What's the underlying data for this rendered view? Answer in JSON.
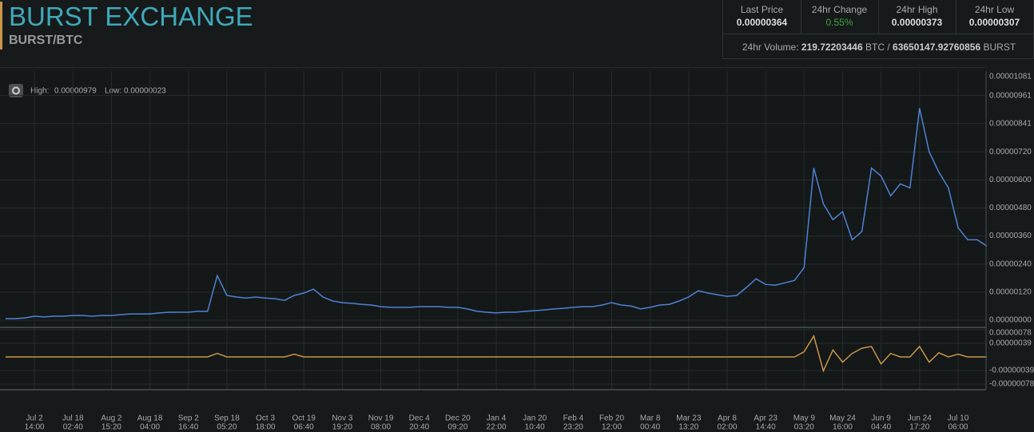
{
  "header": {
    "title": "BURST EXCHANGE",
    "pair": "BURST/BTC"
  },
  "stats": [
    {
      "label": "Last Price",
      "value": "0.00000364"
    },
    {
      "label": "24hr Change",
      "value": "0.55%"
    },
    {
      "label": "24hr High",
      "value": "0.00000373"
    },
    {
      "label": "24hr Low",
      "value": "0.00000307"
    }
  ],
  "volume": {
    "label": "24hr Volume:",
    "btc": "219.72203446",
    "btc_unit": "BTC",
    "separator": "/",
    "burst": "63650147.92760856",
    "burst_unit": "BURST"
  },
  "chart_info": {
    "high_label": "High:",
    "high": "0.00000979",
    "low_label": "Low:",
    "low": "0.00000023"
  },
  "chart_data": [
    {
      "type": "line",
      "categories": [
        null,
        null,
        null,
        "Jul 2",
        null,
        null,
        null,
        "Jul 18",
        null,
        null,
        null,
        "Aug 2",
        null,
        null,
        null,
        "Aug 18",
        null,
        null,
        null,
        "Sep 2",
        null,
        null,
        null,
        "Sep 18",
        null,
        null,
        null,
        "Oct 3",
        null,
        null,
        null,
        "Oct 19",
        null,
        null,
        null,
        "Nov 3",
        null,
        null,
        null,
        "Nov 19",
        null,
        null,
        null,
        "Dec 4",
        null,
        null,
        null,
        "Dec 20",
        null,
        null,
        null,
        "Jan 4",
        null,
        null,
        null,
        "Jan 20",
        null,
        null,
        null,
        "Feb 4",
        null,
        null,
        null,
        "Feb 20",
        null,
        null,
        null,
        "Mar 8",
        null,
        null,
        null,
        "Mar 23",
        null,
        null,
        null,
        "Apr 8",
        null,
        null,
        null,
        "Apr 23",
        null,
        null,
        null,
        "May 9",
        null,
        null,
        null,
        "May 24",
        null,
        null,
        null,
        "Jun 9",
        null,
        null,
        null,
        "Jun 24",
        null,
        null,
        null,
        "Jul 10",
        null,
        null,
        null
      ],
      "category_times": [
        null,
        null,
        null,
        "14:00",
        null,
        null,
        null,
        "02:40",
        null,
        null,
        null,
        "15:20",
        null,
        null,
        null,
        "04:00",
        null,
        null,
        null,
        "16:40",
        null,
        null,
        null,
        "05:20",
        null,
        null,
        null,
        "18:00",
        null,
        null,
        null,
        "06:40",
        null,
        null,
        null,
        "19:20",
        null,
        null,
        null,
        "08:00",
        null,
        null,
        null,
        "20:40",
        null,
        null,
        null,
        "09:20",
        null,
        null,
        null,
        "22:00",
        null,
        null,
        null,
        "10:40",
        null,
        null,
        null,
        "23:20",
        null,
        null,
        null,
        "12:00",
        null,
        null,
        null,
        "00:40",
        null,
        null,
        null,
        "13:20",
        null,
        null,
        null,
        "02:00",
        null,
        null,
        null,
        "14:40",
        null,
        null,
        null,
        "03:20",
        null,
        null,
        null,
        "16:00",
        null,
        null,
        null,
        "04:40",
        null,
        null,
        null,
        "17:20",
        null,
        null,
        null,
        "06:00",
        null,
        null,
        null
      ],
      "color": "#4f82d6",
      "values": [
        7e-08,
        7e-08,
        1e-07,
        1.7e-07,
        1.4e-07,
        1.7e-07,
        1.7e-07,
        2e-07,
        2e-07,
        1.7e-07,
        2e-07,
        2e-07,
        2.4e-07,
        2.7e-07,
        2.7e-07,
        2.7e-07,
        3.1e-07,
        3.4e-07,
        3.4e-07,
        3.4e-07,
        3.8e-07,
        3.8e-07,
        1.91e-06,
        1.06e-06,
        9.9e-07,
        9.5e-07,
        9.9e-07,
        9.5e-07,
        9.2e-07,
        8.5e-07,
        1.06e-06,
        1.16e-06,
        1.33e-06,
        9.9e-07,
        8.2e-07,
        7.5e-07,
        7.2e-07,
        6.8e-07,
        6.5e-07,
        5.8e-07,
        5.5e-07,
        5.5e-07,
        5.5e-07,
        5.8e-07,
        5.8e-07,
        5.8e-07,
        5.5e-07,
        5.5e-07,
        4.8e-07,
        3.8e-07,
        3.4e-07,
        3.1e-07,
        3.4e-07,
        3.4e-07,
        3.8e-07,
        4.1e-07,
        4.4e-07,
        4.8e-07,
        5.1e-07,
        5.5e-07,
        5.8e-07,
        5.8e-07,
        6.5e-07,
        7.5e-07,
        6.5e-07,
        6.1e-07,
        4.8e-07,
        5.5e-07,
        6.5e-07,
        6.8e-07,
        8.2e-07,
        9.9e-07,
        1.26e-06,
        1.16e-06,
        1.09e-06,
        1.02e-06,
        1.06e-06,
        1.4e-06,
        1.77e-06,
        1.53e-06,
        1.5e-06,
        1.6e-06,
        1.7e-06,
        2.25e-06,
        6.51e-06,
        4.98e-06,
        4.3e-06,
        4.64e-06,
        3.44e-06,
        3.79e-06,
        6.51e-06,
        6.17e-06,
        5.32e-06,
        5.83e-06,
        5.66e-06,
        9.07e-06,
        7.2e-06,
        6.34e-06,
        5.66e-06,
        3.96e-06,
        3.44e-06,
        3.44e-06,
        3.17e-06
      ],
      "ylim": [
        0,
        1.081e-05
      ],
      "yticks": [
        {
          "value": 0,
          "label": "0.00000000"
        },
        {
          "value": 1.2e-06,
          "label": "0.00000120"
        },
        {
          "value": 2.4e-06,
          "label": "0.00000240"
        },
        {
          "value": 3.6e-06,
          "label": "0.00000360"
        },
        {
          "value": 4.8e-06,
          "label": "0.00000480"
        },
        {
          "value": 6e-06,
          "label": "0.00000600"
        },
        {
          "value": 7.2e-06,
          "label": "0.00000720"
        },
        {
          "value": 8.41e-06,
          "label": "0.00000841"
        },
        {
          "value": 9.61e-06,
          "label": "0.00000961"
        },
        {
          "value": 1.081e-05,
          "label": "0.00001081"
        }
      ],
      "grid": true
    },
    {
      "type": "line",
      "color": "#c8964a",
      "values": [
        0,
        0,
        0,
        0,
        0,
        0,
        0,
        0,
        0,
        0,
        0,
        0,
        0,
        0,
        0,
        0,
        0,
        0,
        0,
        0,
        0,
        0,
        1e-07,
        0,
        0,
        0,
        0,
        0,
        0,
        0,
        8e-08,
        0,
        0,
        0,
        0,
        0,
        0,
        0,
        0,
        0,
        0,
        0,
        0,
        0,
        0,
        0,
        0,
        0,
        0,
        0,
        0,
        0,
        0,
        0,
        0,
        0,
        0,
        0,
        0,
        0,
        0,
        0,
        0,
        0,
        0,
        0,
        0,
        0,
        0,
        0,
        0,
        0,
        0,
        0,
        0,
        0,
        0,
        0,
        0,
        0,
        0,
        0,
        0,
        1.5e-07,
        6e-07,
        -4e-07,
        2e-07,
        -1.5e-07,
        1e-07,
        2.5e-07,
        3e-07,
        -2e-07,
        1e-07,
        0,
        0,
        3e-07,
        -1.5e-07,
        1.2e-07,
        0,
        8e-08,
        0,
        0,
        0
      ],
      "ylim": [
        -7.8e-07,
        7.8e-07
      ],
      "yticks": [
        {
          "value": 7.8e-07,
          "label": "0.00000078"
        },
        {
          "value": 3.9e-07,
          "label": "0.00000039"
        },
        {
          "value": -3.9e-07,
          "label": "-0.00000039"
        },
        {
          "value": -7.8e-07,
          "label": "-0.00000078"
        }
      ],
      "grid": true
    }
  ]
}
